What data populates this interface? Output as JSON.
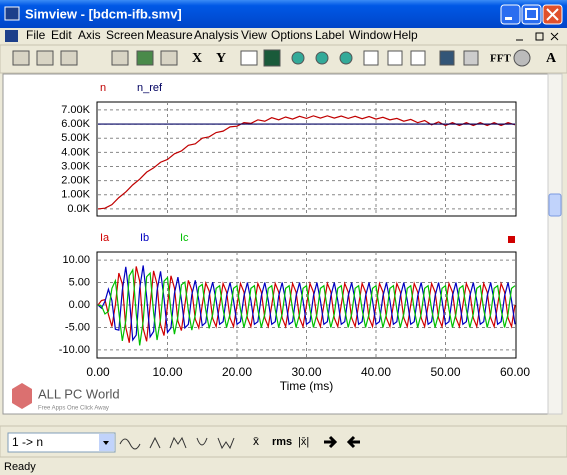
{
  "window": {
    "title": "Simview - [bdcm-ifb.smv]",
    "menu": [
      "File",
      "Edit",
      "Axis",
      "Screen",
      "Measure",
      "Analysis",
      "View",
      "Options",
      "Label",
      "Window",
      "Help"
    ],
    "toolbar": [
      "X",
      "Y",
      "FFT",
      "A"
    ],
    "selector": "1 -> n",
    "bottom_toolbar": [
      "x̄",
      "rms",
      "|x̄|"
    ],
    "status": "Ready",
    "watermark": {
      "title": "ALL PC World",
      "subtitle": "Free Apps One Click Away"
    }
  },
  "chart_data": [
    {
      "type": "line",
      "series": [
        {
          "name": "n",
          "color": "#c00000",
          "x": [
            0,
            1,
            2,
            3,
            4,
            5,
            6,
            7,
            8,
            9,
            10,
            11,
            12,
            13,
            14,
            15,
            16,
            17,
            18,
            19,
            20,
            21,
            22,
            23,
            24,
            25,
            26,
            27,
            28,
            29,
            30,
            31,
            32,
            33,
            34,
            35,
            36,
            37,
            38,
            39,
            40,
            41,
            42,
            43,
            44,
            45,
            46,
            47,
            48,
            49,
            50,
            51,
            52,
            53,
            54,
            55,
            56,
            57,
            58,
            59,
            60
          ],
          "values": [
            0,
            50,
            300,
            800,
            1200,
            1700,
            2100,
            2600,
            2900,
            3300,
            3500,
            3900,
            4100,
            4500,
            4600,
            5000,
            5100,
            5400,
            5500,
            5800,
            5850,
            6100,
            6050,
            6300,
            6200,
            6450,
            6300,
            6500,
            6350,
            6550,
            6400,
            6580,
            6420,
            6580,
            6420,
            6570,
            6400,
            6550,
            6380,
            6530,
            6350,
            6480,
            6300,
            6400,
            6200,
            6330,
            6100,
            6250,
            5950,
            6150,
            5900,
            6100,
            5900,
            6100,
            5900,
            6100,
            5900,
            6100,
            5900,
            6100,
            5950
          ]
        },
        {
          "name": "n_ref",
          "color": "#000060",
          "x": [
            0,
            60
          ],
          "values": [
            6000,
            6000
          ]
        }
      ],
      "xlim": [
        0,
        60
      ],
      "ylim": [
        -500,
        7560
      ],
      "yticks": [
        {
          "value": 0,
          "label": "0.0K"
        },
        {
          "value": 1000,
          "label": "1.00K"
        },
        {
          "value": 2000,
          "label": "2.00K"
        },
        {
          "value": 3000,
          "label": "3.00K"
        },
        {
          "value": 4000,
          "label": "4.00K"
        },
        {
          "value": 5000,
          "label": "5.00K"
        },
        {
          "value": 6000,
          "label": "6.00K"
        },
        {
          "value": 7000,
          "label": "7.00K"
        }
      ],
      "grid": true
    },
    {
      "type": "line",
      "x_label": "Time (ms)",
      "x": [
        0,
        0.5,
        1,
        1.5,
        2,
        2.5,
        3,
        3.5,
        4,
        4.5,
        5,
        5.5,
        6,
        6.5,
        7,
        7.5,
        8,
        8.5,
        9,
        9.5,
        10,
        10.5,
        11,
        11.5,
        12,
        12.5,
        13,
        13.5,
        14,
        14.5,
        15,
        15.5,
        16,
        16.5,
        17,
        17.5,
        18,
        18.5,
        19,
        19.5,
        20,
        20.5,
        21,
        21.5,
        22,
        22.5,
        23,
        23.5,
        24,
        24.5,
        25,
        25.5,
        26,
        26.5,
        27,
        27.5,
        28,
        28.5,
        29,
        29.5,
        30,
        30.5,
        31,
        31.5,
        32,
        32.5,
        33,
        33.5,
        34,
        34.5,
        35,
        35.5,
        36,
        36.5,
        37,
        37.5,
        38,
        38.5,
        39,
        39.5,
        40,
        40.5,
        41,
        41.5,
        42,
        42.5,
        43,
        43.5,
        44,
        44.5,
        45,
        45.5,
        46,
        46.5,
        47,
        47.5,
        48,
        48.5,
        49,
        49.5,
        50,
        50.5,
        51,
        51.5,
        52,
        52.5,
        53,
        53.5,
        54,
        54.5,
        55,
        55.5,
        56,
        56.5,
        57,
        57.5,
        58,
        58.5,
        59,
        59.5,
        60
      ],
      "series": [
        {
          "name": "Ia",
          "color": "#d00000",
          "values": [
            0,
            1.0,
            1.2,
            -2.1,
            -4.8,
            0,
            7.1,
            4.7,
            -5.0,
            -8.4,
            0,
            8.6,
            5.3,
            -5.2,
            -8.1,
            0,
            7.6,
            4.6,
            -4.4,
            -6.8,
            0,
            6.5,
            3.8,
            -3.6,
            -5.7,
            0,
            5.5,
            3.3,
            -3.2,
            -5.1,
            0,
            4.9,
            3.1,
            -3.0,
            -4.8,
            0,
            4.8,
            2.9,
            -2.9,
            -4.8,
            0,
            4.8,
            2.9,
            -2.9,
            -4.8,
            0,
            4.8,
            2.9,
            -2.9,
            -4.8,
            0,
            4.8,
            2.9,
            -2.9,
            -4.8,
            0,
            4.8,
            2.9,
            -2.9,
            -4.8,
            0,
            4.8,
            2.9,
            -2.9,
            -4.8,
            0,
            4.8,
            2.9,
            -2.9,
            -4.8,
            0,
            4.8,
            2.9,
            -2.9,
            -4.8,
            0,
            4.8,
            2.9,
            -2.9,
            -4.8,
            0,
            4.8,
            2.9,
            -2.9,
            -4.8,
            0,
            4.8,
            2.9,
            -2.9,
            -4.8,
            0,
            4.8,
            2.9,
            -2.9,
            -4.8,
            0,
            4.8,
            2.9,
            -2.9,
            -4.8,
            0,
            4.8,
            2.9,
            -2.9,
            -4.8,
            0,
            4.8,
            2.9,
            -2.9,
            -4.8,
            0,
            4.8,
            2.9,
            -2.9,
            -4.8,
            0,
            4.8,
            2.9,
            -2.9,
            -4.8,
            0
          ]
        },
        {
          "name": "Ib",
          "color": "#0000c0",
          "values": [
            0,
            -0.7,
            0.8,
            3.5,
            1.0,
            -5.4,
            -5.6,
            3.3,
            8.5,
            1.8,
            -7.8,
            -6.7,
            3.7,
            8.8,
            1.8,
            -7.1,
            -5.9,
            3.2,
            7.5,
            1.5,
            -6.1,
            -5.1,
            2.6,
            6.2,
            1.2,
            -5.1,
            -4.3,
            2.3,
            5.5,
            1.1,
            -4.6,
            -3.9,
            2.1,
            5.1,
            1.0,
            -4.3,
            -3.7,
            2.0,
            5.0,
            1.0,
            -4.3,
            -3.7,
            2.0,
            5.0,
            1.0,
            -4.3,
            -3.7,
            2.0,
            5.0,
            1.0,
            -4.3,
            -3.7,
            2.0,
            5.0,
            1.0,
            -4.3,
            -3.7,
            2.0,
            5.0,
            1.0,
            -4.3,
            -3.7,
            2.0,
            5.0,
            1.0,
            -4.3,
            -3.7,
            2.0,
            5.0,
            1.0,
            -4.3,
            -3.7,
            2.0,
            5.0,
            1.0,
            -4.3,
            -3.7,
            2.0,
            5.0,
            1.0,
            -4.3,
            -3.7,
            2.0,
            5.0,
            1.0,
            -4.3,
            -3.7,
            2.0,
            5.0,
            1.0,
            -4.3,
            -3.7,
            2.0,
            5.0,
            1.0,
            -4.3,
            -3.7,
            2.0,
            5.0,
            1.0,
            -4.3,
            -3.7,
            2.0,
            5.0,
            1.0,
            -4.3,
            -3.7,
            2.0,
            5.0,
            1.0,
            -4.3,
            -3.7,
            2.0,
            5.0,
            1.0,
            -4.3,
            -3.7,
            2.0,
            5.0,
            1.0,
            -4.3
          ]
        },
        {
          "name": "Ic",
          "color": "#00c000",
          "values": [
            0,
            -0.2,
            -2.0,
            -1.4,
            3.7,
            5.4,
            -1.6,
            -8.0,
            -3.5,
            6.5,
            7.8,
            -1.9,
            -9.0,
            -3.6,
            6.3,
            7.1,
            -1.7,
            -7.8,
            -3.1,
            5.3,
            6.1,
            -1.4,
            -6.5,
            -2.5,
            4.5,
            5.1,
            -1.2,
            -5.6,
            -2.2,
            4.0,
            4.6,
            -1.1,
            -5.2,
            -2.1,
            3.7,
            4.3,
            -1.0,
            -5.0,
            -2.0,
            3.7,
            4.3,
            -1.0,
            -5.0,
            -2.0,
            3.7,
            4.3,
            -1.0,
            -5.0,
            -2.0,
            3.7,
            4.3,
            -1.0,
            -5.0,
            -2.0,
            3.7,
            4.3,
            -1.0,
            -5.0,
            -2.0,
            3.7,
            4.3,
            -1.0,
            -5.0,
            -2.0,
            3.7,
            4.3,
            -1.0,
            -5.0,
            -2.0,
            3.7,
            4.3,
            -1.0,
            -5.0,
            -2.0,
            3.7,
            4.3,
            -1.0,
            -5.0,
            -2.0,
            3.7,
            4.3,
            -1.0,
            -5.0,
            -2.0,
            3.7,
            4.3,
            -1.0,
            -5.0,
            -2.0,
            3.7,
            4.3,
            -1.0,
            -5.0,
            -2.0,
            3.7,
            4.3,
            -1.0,
            -5.0,
            -2.0,
            3.7,
            4.3,
            -1.0,
            -5.0,
            -2.0,
            3.7,
            4.3,
            -1.0,
            -5.0,
            -2.0,
            3.7,
            4.3,
            -1.0,
            -5.0,
            -2.0,
            3.7,
            4.3,
            -1.0,
            -5.0,
            -2.0,
            3.7,
            4.3
          ]
        }
      ],
      "xlim": [
        0,
        60
      ],
      "ylim": [
        -11.8,
        11.8
      ],
      "xticks": [
        {
          "value": 0,
          "label": "0.00"
        },
        {
          "value": 10,
          "label": "10.00"
        },
        {
          "value": 20,
          "label": "20.00"
        },
        {
          "value": 30,
          "label": "30.00"
        },
        {
          "value": 40,
          "label": "40.00"
        },
        {
          "value": 50,
          "label": "50.00"
        },
        {
          "value": 60,
          "label": "60.00"
        }
      ],
      "yticks": [
        {
          "value": 10,
          "label": "10.00"
        },
        {
          "value": 5,
          "label": "5.00"
        },
        {
          "value": 0,
          "label": "0.00"
        },
        {
          "value": -5,
          "label": "-5.00"
        },
        {
          "value": -10,
          "label": "-10.00"
        }
      ],
      "grid": true
    }
  ]
}
